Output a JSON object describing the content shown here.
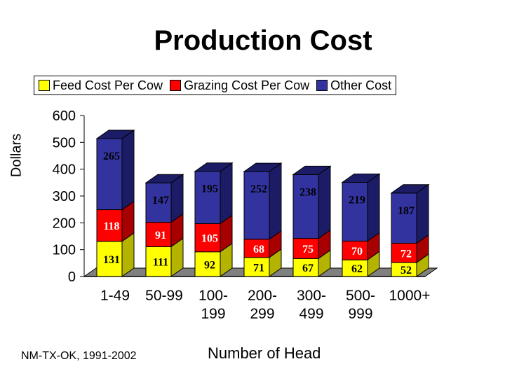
{
  "chart_data": {
    "type": "bar",
    "stacked": true,
    "style": "3d",
    "title": "Production Cost",
    "ylabel": "Dollars",
    "xlabel": "Number of Head",
    "ylim": [
      0,
      600
    ],
    "yticks": [
      0,
      100,
      200,
      300,
      400,
      500,
      600
    ],
    "categories": [
      [
        "1-49"
      ],
      [
        "50-99"
      ],
      [
        "100-",
        "199"
      ],
      [
        "200-",
        "299"
      ],
      [
        "300-",
        "499"
      ],
      [
        "500-",
        "999"
      ],
      [
        "1000+"
      ]
    ],
    "series": [
      {
        "name": "Feed Cost Per Cow",
        "color": "#ffff00",
        "side": "#b3b300",
        "values": [
          131,
          111,
          92,
          71,
          67,
          62,
          52
        ]
      },
      {
        "name": "Grazing Cost Per Cow",
        "color": "#ff0000",
        "side": "#a80000",
        "values": [
          118,
          91,
          105,
          68,
          75,
          70,
          72
        ]
      },
      {
        "name": "Other Cost",
        "color": "#3333a0",
        "side": "#1c1c66",
        "values": [
          265,
          147,
          195,
          252,
          238,
          219,
          187
        ]
      }
    ],
    "legend_position": "top",
    "footnote": "NM-TX-OK, 1991-2002"
  }
}
